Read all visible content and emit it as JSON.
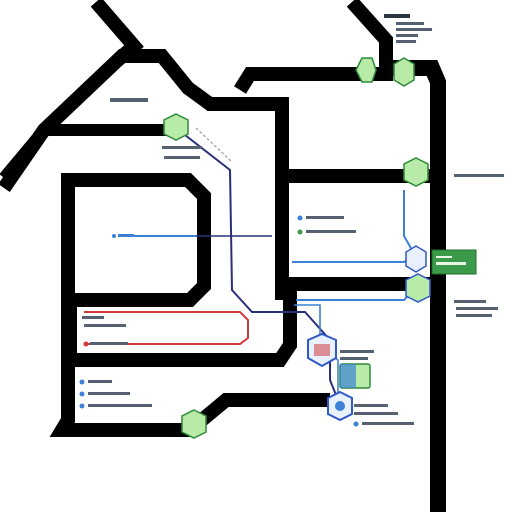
{
  "colors": {
    "road": "#000000",
    "background": "#ffffff",
    "node_fill": "#b8eaa8",
    "node_stroke": "#2e8a3a",
    "hub_fill": "#e9f0ff",
    "hub_stroke": "#2f58c8",
    "route_navy": "#2a2f7a",
    "route_blue": "#3b82d6",
    "route_red": "#d23a3a",
    "legend_box": "#3a9a4a"
  },
  "nodes": [
    {
      "name": "node-top-left",
      "icon": "hex-node-icon",
      "kind": "green"
    },
    {
      "name": "node-top-right",
      "icon": "hex-node-icon",
      "kind": "green"
    },
    {
      "name": "node-upper-left",
      "icon": "hex-node-icon",
      "kind": "green"
    },
    {
      "name": "node-right-upper",
      "icon": "hex-node-icon",
      "kind": "green"
    },
    {
      "name": "node-right-middle",
      "icon": "hex-node-icon",
      "kind": "green"
    },
    {
      "name": "node-right-lower",
      "icon": "hex-node-icon",
      "kind": "green"
    },
    {
      "name": "node-center-hub",
      "icon": "building-icon",
      "kind": "hub"
    },
    {
      "name": "node-center-square",
      "icon": "square-node-icon",
      "kind": "green"
    },
    {
      "name": "node-bottom-hub",
      "icon": "hex-hub-icon",
      "kind": "hub"
    },
    {
      "name": "node-bottom-left",
      "icon": "hex-node-icon",
      "kind": "green"
    }
  ]
}
